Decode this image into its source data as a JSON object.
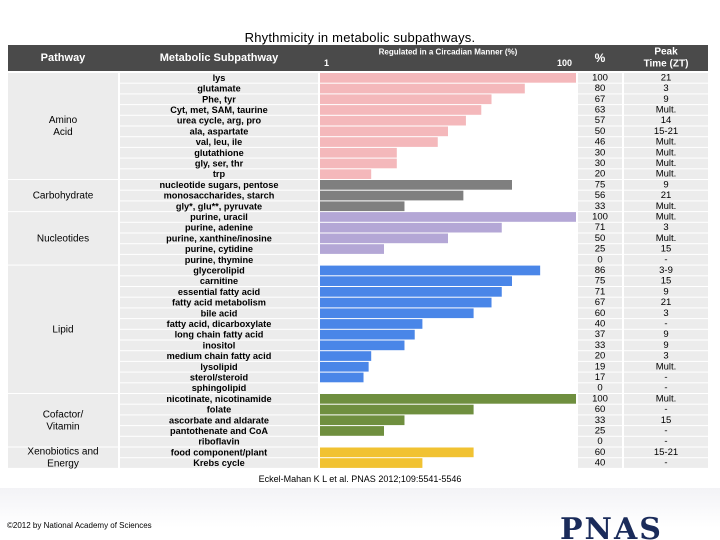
{
  "slide_title": "Rhythmicity in metabolic subpathways.",
  "citation": "Eckel-Mahan K L et al. PNAS 2012;109:5541-5546",
  "copyright": "©2012 by National Academy of Sciences",
  "logo_text": "PNAS",
  "chart_data": {
    "type": "table",
    "title": "Rhythmicity in metabolic subpathways.",
    "columns": {
      "pathway": "Pathway",
      "subpathway": "Metabolic Subpathway",
      "regulated": "Regulated in a Circadian Manner (%)",
      "scale_min": "1",
      "scale_max": "100",
      "percent": "%",
      "peak": "Peak Time (ZT)"
    },
    "xlim": [
      0,
      100
    ],
    "groups": [
      {
        "name": "Amino Acid",
        "color": "#f4b8bb",
        "rows": [
          {
            "sub": "lys",
            "pct": 100,
            "peak": "21"
          },
          {
            "sub": "glutamate",
            "pct": 80,
            "peak": "3"
          },
          {
            "sub": "Phe, tyr",
            "pct": 67,
            "peak": "9"
          },
          {
            "sub": "Cyt, met, SAM, taurine",
            "pct": 63,
            "peak": "Mult."
          },
          {
            "sub": "urea cycle, arg, pro",
            "pct": 57,
            "peak": "14"
          },
          {
            "sub": "ala, aspartate",
            "pct": 50,
            "peak": "15-21"
          },
          {
            "sub": "val, leu, ile",
            "pct": 46,
            "peak": "Mult."
          },
          {
            "sub": "glutathione",
            "pct": 30,
            "peak": "Mult."
          },
          {
            "sub": "gly, ser, thr",
            "pct": 30,
            "peak": "Mult."
          },
          {
            "sub": "trp",
            "pct": 20,
            "peak": "Mult."
          }
        ]
      },
      {
        "name": "Carbohydrate",
        "color": "#7f7f7f",
        "rows": [
          {
            "sub": "nucleotide sugars, pentose",
            "pct": 75,
            "peak": "9"
          },
          {
            "sub": "monosaccharides, starch",
            "pct": 56,
            "peak": "21"
          },
          {
            "sub": "gly*, glu**, pyruvate",
            "pct": 33,
            "peak": "Mult."
          }
        ]
      },
      {
        "name": "Nucleotides",
        "color": "#b4a7d6",
        "rows": [
          {
            "sub": "purine, uracil",
            "pct": 100,
            "peak": "Mult."
          },
          {
            "sub": "purine, adenine",
            "pct": 71,
            "peak": "3"
          },
          {
            "sub": "purine, xanthine/inosine",
            "pct": 50,
            "peak": "Mult."
          },
          {
            "sub": "purine, cytidine",
            "pct": 25,
            "peak": "15"
          },
          {
            "sub": "purine, thymine",
            "pct": 0,
            "peak": "-"
          }
        ]
      },
      {
        "name": "Lipid",
        "color": "#4a86e8",
        "rows": [
          {
            "sub": "glycerolipid",
            "pct": 86,
            "peak": "3-9"
          },
          {
            "sub": "carnitine",
            "pct": 75,
            "peak": "15"
          },
          {
            "sub": "essential fatty acid",
            "pct": 71,
            "peak": "9"
          },
          {
            "sub": "fatty acid metabolism",
            "pct": 67,
            "peak": "21"
          },
          {
            "sub": "bile acid",
            "pct": 60,
            "peak": "3"
          },
          {
            "sub": "fatty acid, dicarboxylate",
            "pct": 40,
            "peak": "-"
          },
          {
            "sub": "long chain fatty acid",
            "pct": 37,
            "peak": "9"
          },
          {
            "sub": "inositol",
            "pct": 33,
            "peak": "9"
          },
          {
            "sub": "medium chain fatty acid",
            "pct": 20,
            "peak": "3"
          },
          {
            "sub": "lysolipid",
            "pct": 19,
            "peak": "Mult."
          },
          {
            "sub": "sterol/steroid",
            "pct": 17,
            "peak": "-"
          },
          {
            "sub": "sphingolipid",
            "pct": 0,
            "peak": "-"
          }
        ]
      },
      {
        "name": "Cofactor/ Vitamin",
        "color": "#6f8f3f",
        "rows": [
          {
            "sub": "nicotinate, nicotinamide",
            "pct": 100,
            "peak": "Mult."
          },
          {
            "sub": "folate",
            "pct": 60,
            "peak": "-"
          },
          {
            "sub": "ascorbate and aldarate",
            "pct": 33,
            "peak": "15"
          },
          {
            "sub": "pantothenate and CoA",
            "pct": 25,
            "peak": "-"
          },
          {
            "sub": "riboflavin",
            "pct": 0,
            "peak": "-"
          }
        ]
      },
      {
        "name": "Xenobiotics and Energy",
        "color": "#f1c232",
        "rows": [
          {
            "sub": "food component/plant",
            "pct": 60,
            "peak": "15-21"
          },
          {
            "sub": "Krebs cycle",
            "pct": 40,
            "peak": "-"
          }
        ]
      }
    ]
  }
}
